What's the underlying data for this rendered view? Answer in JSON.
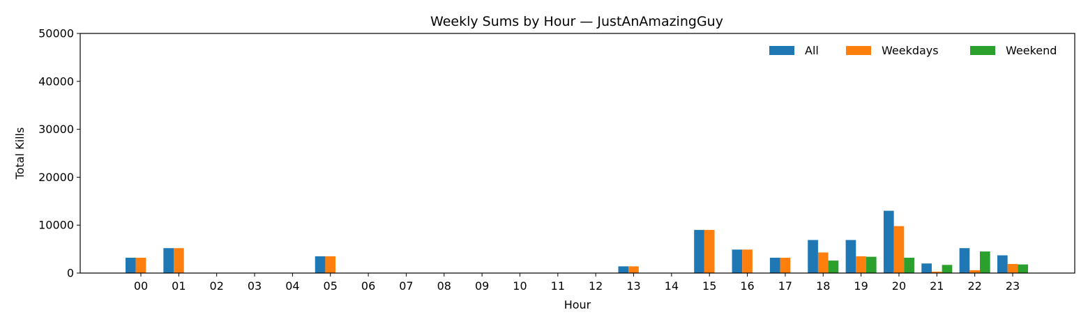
{
  "chart_data": {
    "type": "bar",
    "title": "Weekly Sums by Hour — JustAnAmazingGuy",
    "xlabel": "Hour",
    "ylabel": "Total Kills",
    "ylim": [
      0,
      50000
    ],
    "yticks": [
      0,
      10000,
      20000,
      30000,
      40000,
      50000
    ],
    "grid": false,
    "legend_position": "top-right",
    "categories": [
      "00",
      "01",
      "02",
      "03",
      "04",
      "05",
      "06",
      "07",
      "08",
      "09",
      "10",
      "11",
      "12",
      "13",
      "14",
      "15",
      "16",
      "17",
      "18",
      "19",
      "20",
      "21",
      "22",
      "23"
    ],
    "series": [
      {
        "name": "All",
        "color": "#1f77b4",
        "values": [
          3200,
          5200,
          0,
          0,
          0,
          3500,
          0,
          0,
          0,
          0,
          0,
          0,
          0,
          1400,
          0,
          9000,
          4900,
          3200,
          6900,
          6900,
          13000,
          2000,
          5200,
          3700
        ]
      },
      {
        "name": "Weekdays",
        "color": "#ff7f0e",
        "values": [
          3200,
          5200,
          0,
          0,
          0,
          3500,
          0,
          0,
          0,
          0,
          0,
          0,
          0,
          1400,
          0,
          9000,
          4900,
          3200,
          4300,
          3500,
          9800,
          300,
          600,
          1900
        ]
      },
      {
        "name": "Weekend",
        "color": "#2ca02c",
        "values": [
          0,
          0,
          0,
          0,
          0,
          0,
          0,
          0,
          0,
          0,
          0,
          0,
          0,
          0,
          0,
          0,
          0,
          0,
          2600,
          3400,
          3200,
          1700,
          4500,
          1800
        ]
      }
    ]
  }
}
